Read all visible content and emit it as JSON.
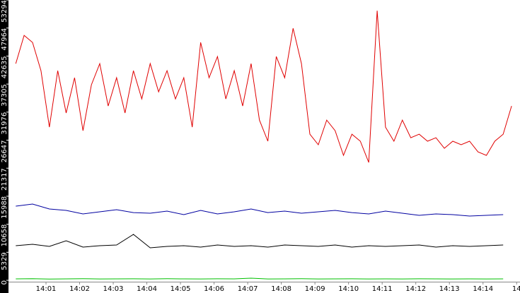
{
  "chart_data": {
    "type": "line",
    "xlim": [
      0,
      15.1
    ],
    "xticks": [
      {
        "value": 1,
        "label": "14:01"
      },
      {
        "value": 2,
        "label": "14:02"
      },
      {
        "value": 3,
        "label": "14:03"
      },
      {
        "value": 4,
        "label": "14:04"
      },
      {
        "value": 5,
        "label": "14:05"
      },
      {
        "value": 6,
        "label": "14:06"
      },
      {
        "value": 7,
        "label": "14:07"
      },
      {
        "value": 8,
        "label": "14:08"
      },
      {
        "value": 9,
        "label": "14:09"
      },
      {
        "value": 10,
        "label": "14:10"
      },
      {
        "value": 11,
        "label": "14:11"
      },
      {
        "value": 12,
        "label": "14:12"
      },
      {
        "value": 13,
        "label": "14:13"
      },
      {
        "value": 14,
        "label": "14:14"
      },
      {
        "value": 15,
        "label": "14"
      }
    ],
    "ylim": [
      0,
      53294
    ],
    "yticks": [
      0,
      5329,
      10658,
      15988,
      21317,
      26647,
      31976,
      37305,
      42635,
      47964,
      53294
    ],
    "series": [
      {
        "color": "#e00000",
        "x": [
          0.1,
          0.35,
          0.6,
          0.85,
          1.1,
          1.35,
          1.6,
          1.85,
          2.1,
          2.35,
          2.6,
          2.85,
          3.1,
          3.35,
          3.6,
          3.85,
          4.1,
          4.35,
          4.6,
          4.85,
          5.1,
          5.35,
          5.6,
          5.85,
          6.1,
          6.35,
          6.6,
          6.85,
          7.1,
          7.35,
          7.6,
          7.85,
          8.1,
          8.35,
          8.6,
          8.85,
          9.1,
          9.35,
          9.6,
          9.85,
          10.1,
          10.35,
          10.6,
          10.85,
          11.1,
          11.35,
          11.6,
          11.85,
          12.1,
          12.35,
          12.6,
          12.85,
          13.1,
          13.35,
          13.6,
          13.85,
          14.1,
          14.35,
          14.6,
          14.85
        ],
        "values": [
          41200,
          46570,
          45230,
          39860,
          29120,
          39860,
          31810,
          38520,
          28450,
          37170,
          41200,
          33150,
          38520,
          31810,
          39860,
          34490,
          41200,
          35830,
          39860,
          34490,
          38520,
          29120,
          45230,
          38520,
          42540,
          34490,
          39860,
          33150,
          41200,
          30460,
          26440,
          42540,
          38520,
          47910,
          41200,
          27780,
          25770,
          30460,
          28450,
          23750,
          27780,
          26440,
          22410,
          51260,
          29120,
          26440,
          30460,
          27110,
          27780,
          26440,
          27110,
          25100,
          26440,
          25770,
          26440,
          24420,
          23750,
          26440,
          27780,
          33150
        ]
      },
      {
        "color": "#0000a0",
        "x": [
          0.1,
          0.6,
          1.1,
          1.6,
          2.1,
          2.6,
          3.1,
          3.6,
          4.1,
          4.6,
          5.1,
          5.6,
          6.1,
          6.6,
          7.1,
          7.6,
          8.1,
          8.6,
          9.1,
          9.6,
          10.1,
          10.6,
          11.1,
          11.6,
          12.1,
          12.6,
          13.1,
          13.6,
          14.1,
          14.6
        ],
        "values": [
          14090,
          14500,
          13560,
          13290,
          12620,
          13020,
          13420,
          12880,
          12750,
          13160,
          12480,
          13290,
          12620,
          13020,
          13560,
          12880,
          13160,
          12750,
          13020,
          13290,
          12880,
          12620,
          13160,
          12750,
          12350,
          12620,
          12480,
          12210,
          12350,
          12480
        ]
      },
      {
        "color": "#000000",
        "x": [
          0.1,
          0.6,
          1.1,
          1.6,
          2.1,
          2.6,
          3.1,
          3.6,
          4.1,
          4.6,
          5.1,
          5.6,
          6.1,
          6.6,
          7.1,
          7.6,
          8.1,
          8.6,
          9.1,
          9.6,
          10.1,
          10.6,
          11.1,
          11.6,
          12.1,
          12.6,
          13.1,
          13.6,
          14.1,
          14.6
        ],
        "values": [
          6580,
          6850,
          6440,
          7520,
          6310,
          6580,
          6710,
          8720,
          6170,
          6440,
          6580,
          6310,
          6710,
          6440,
          6580,
          6310,
          6710,
          6580,
          6440,
          6710,
          6310,
          6580,
          6440,
          6580,
          6710,
          6310,
          6580,
          6440,
          6580,
          6710
        ]
      },
      {
        "color": "#00c000",
        "x": [
          0.1,
          0.6,
          1.1,
          1.6,
          2.1,
          2.6,
          3.1,
          3.6,
          4.1,
          4.6,
          5.1,
          5.6,
          6.1,
          6.6,
          7.1,
          7.6,
          8.1,
          8.6,
          9.1,
          9.6,
          10.1,
          10.6,
          11.1,
          11.6,
          12.1,
          12.6,
          13.1,
          13.6,
          14.1,
          14.6
        ],
        "values": [
          270,
          310,
          240,
          270,
          300,
          250,
          270,
          280,
          260,
          290,
          270,
          250,
          280,
          270,
          400,
          260,
          270,
          290,
          260,
          270,
          280,
          250,
          270,
          260,
          280,
          270,
          250,
          270,
          260,
          270
        ]
      }
    ]
  }
}
